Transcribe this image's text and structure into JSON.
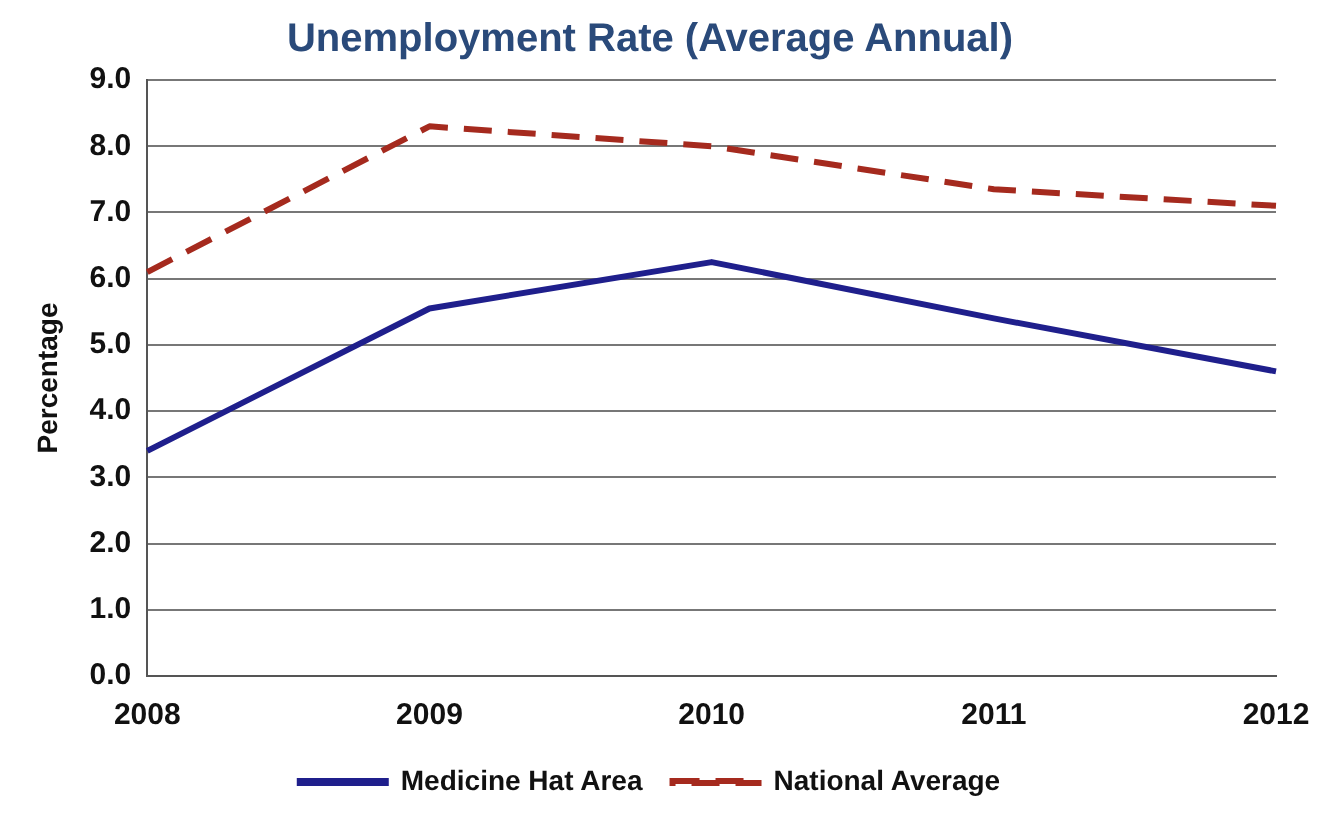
{
  "chart_data": {
    "type": "line",
    "title": "Unemployment Rate (Average Annual)",
    "ylabel": "Percentage",
    "categories": [
      "2008",
      "2009",
      "2010",
      "2011",
      "2012"
    ],
    "series": [
      {
        "name": "Medicine Hat Area",
        "color": "#1f1f8c",
        "values": [
          3.4,
          5.55,
          6.25,
          5.4,
          4.6
        ],
        "line_style": "solid"
      },
      {
        "name": "National Average",
        "color": "#a52a1e",
        "values": [
          6.1,
          8.3,
          8.0,
          7.35,
          7.1
        ],
        "line_style": "dashed"
      }
    ],
    "ylim": [
      0,
      9
    ],
    "yticks": [
      {
        "value": 0,
        "label": "0.0"
      },
      {
        "value": 1,
        "label": "1.0"
      },
      {
        "value": 2,
        "label": "2.0"
      },
      {
        "value": 3,
        "label": "3.0"
      },
      {
        "value": 4,
        "label": "4.0"
      },
      {
        "value": 5,
        "label": "5.0"
      },
      {
        "value": 6,
        "label": "6.0"
      },
      {
        "value": 7,
        "label": "7.0"
      },
      {
        "value": 8,
        "label": "8.0"
      },
      {
        "value": 9,
        "label": "9.0"
      }
    ],
    "grid": "y",
    "legend": "bottom",
    "marker": "none"
  }
}
